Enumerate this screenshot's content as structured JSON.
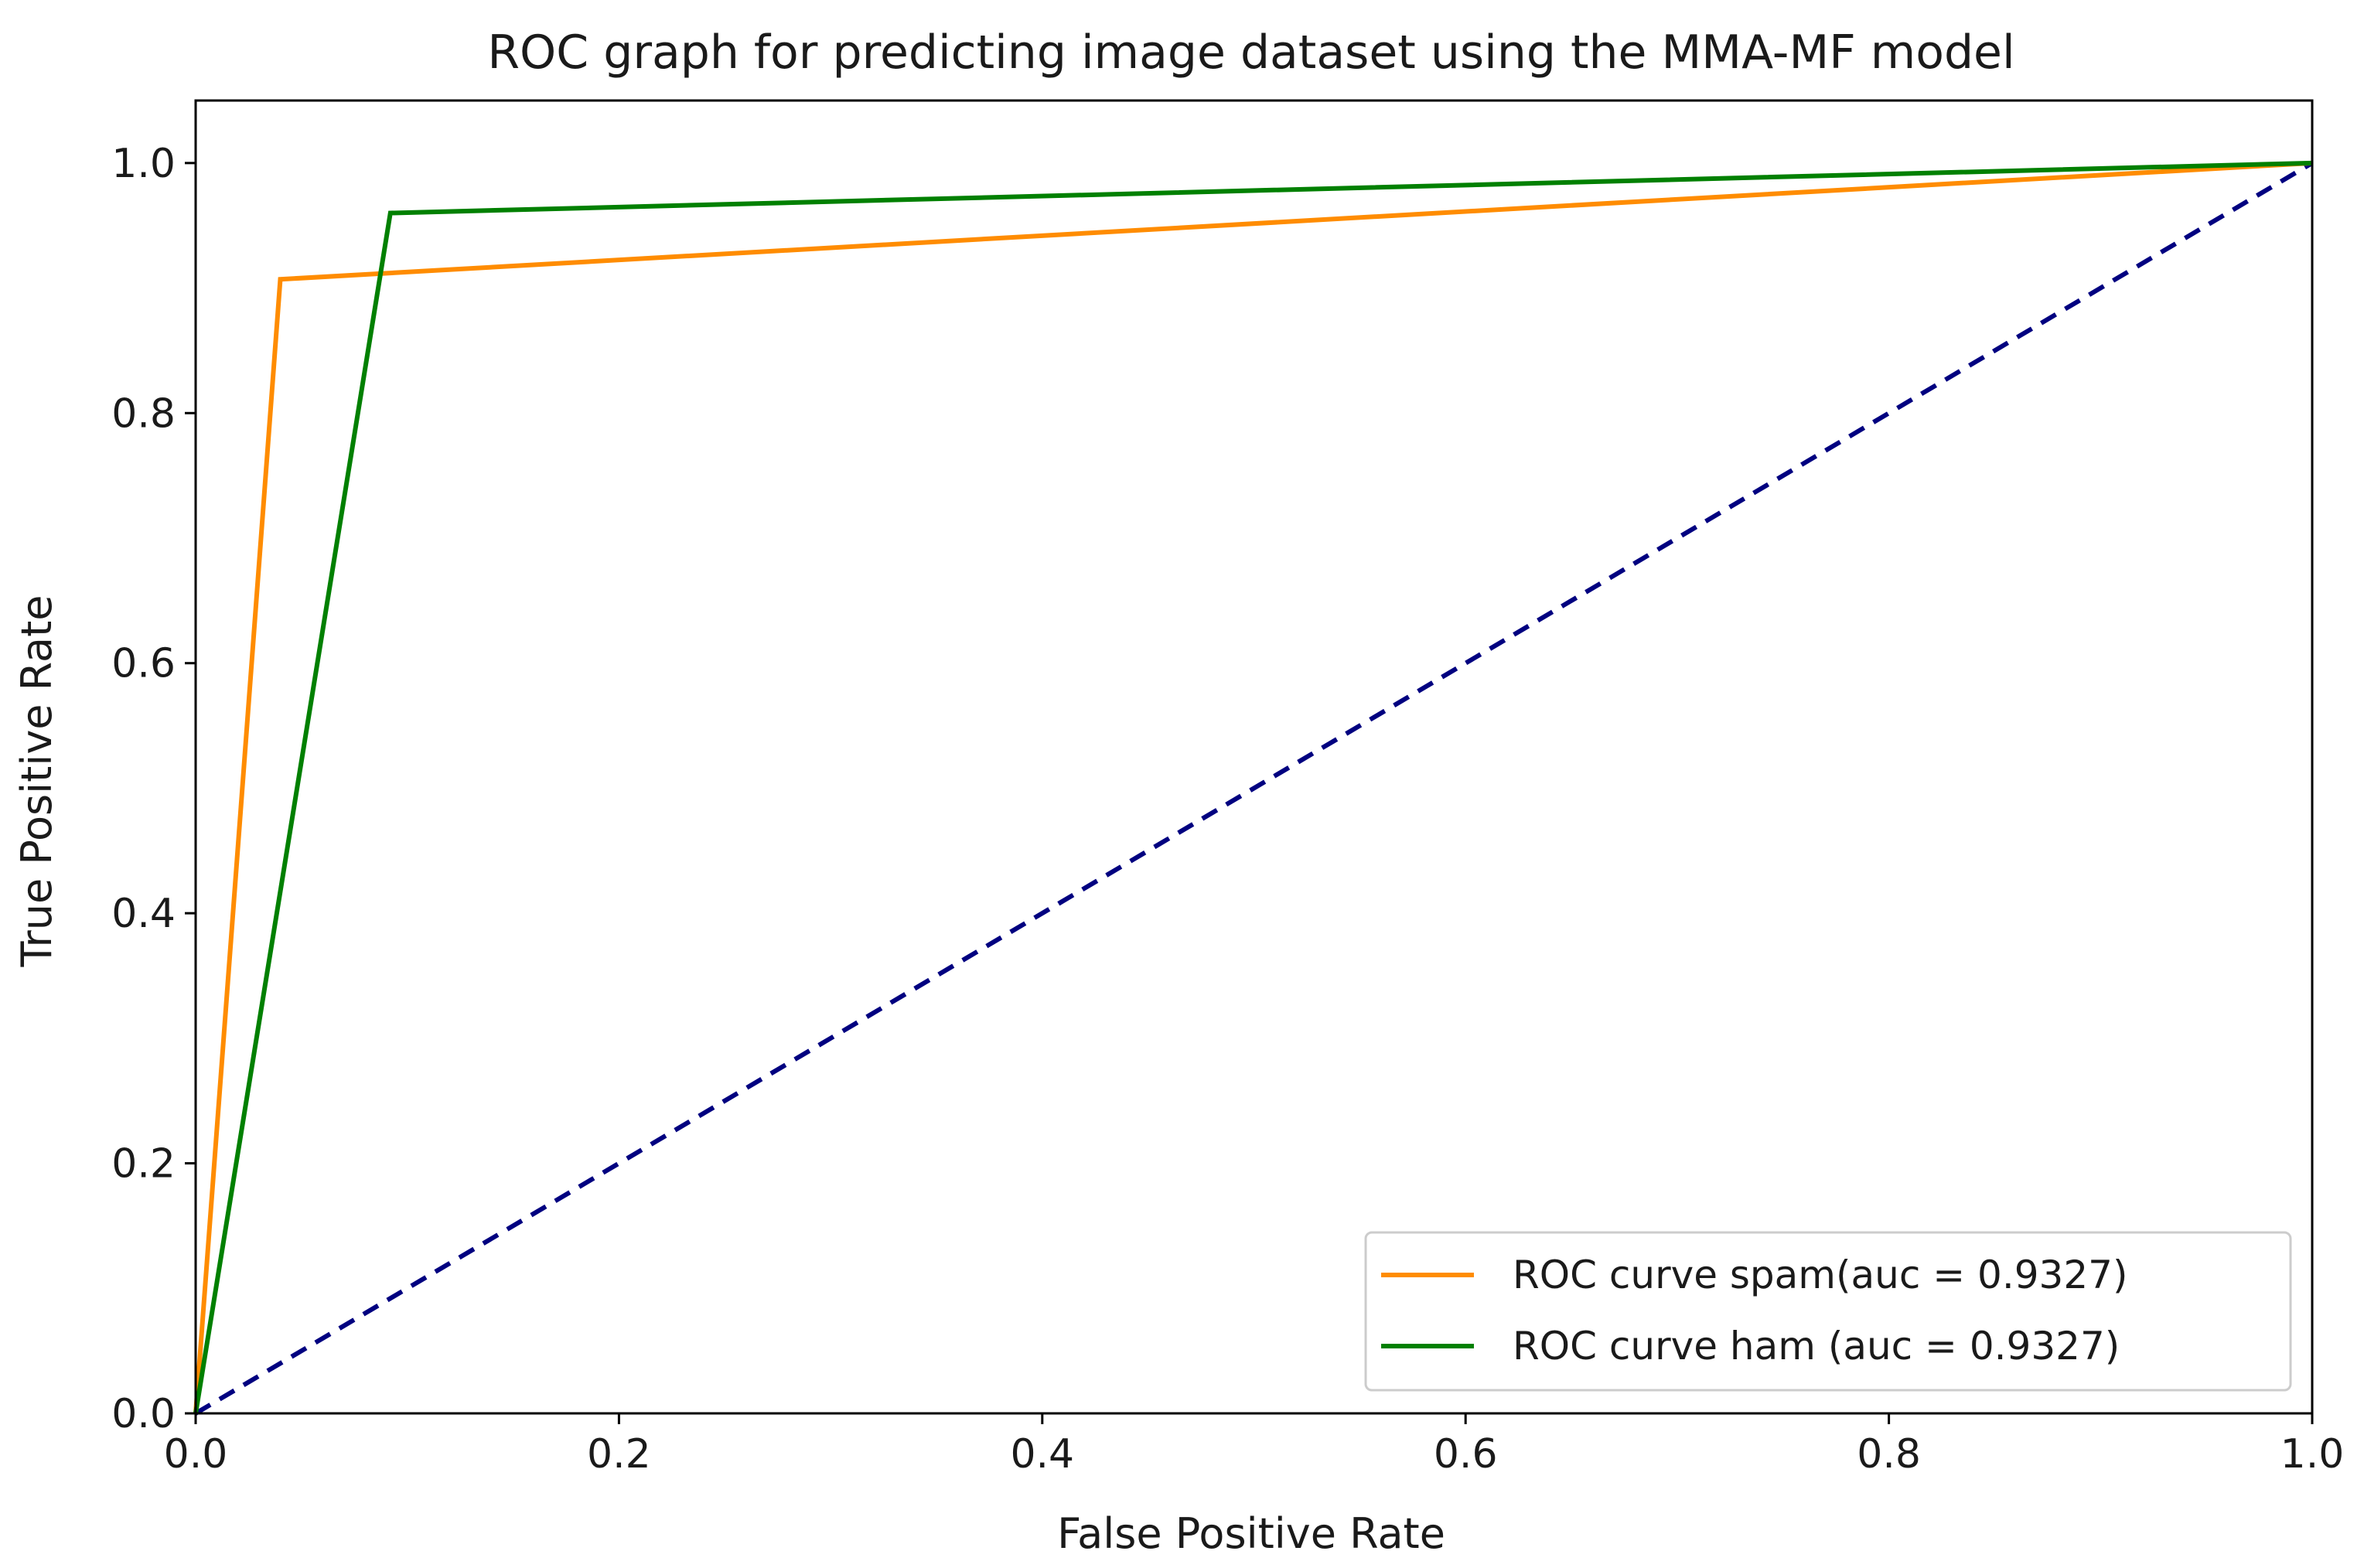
{
  "chart_data": {
    "type": "line",
    "title": "ROC graph for predicting image dataset using the MMA-MF model",
    "xlabel": "False Positive Rate",
    "ylabel": "True Positive Rate",
    "xlim": [
      0.0,
      1.0
    ],
    "ylim": [
      0.0,
      1.05
    ],
    "xticks": [
      0.0,
      0.2,
      0.4,
      0.6,
      0.8,
      1.0
    ],
    "yticks": [
      0.0,
      0.2,
      0.4,
      0.6,
      0.8,
      1.0
    ],
    "xtick_labels": [
      "0.0",
      "0.2",
      "0.4",
      "0.6",
      "0.8",
      "1.0"
    ],
    "ytick_labels": [
      "0.0",
      "0.2",
      "0.4",
      "0.6",
      "0.8",
      "1.0"
    ],
    "grid": false,
    "legend_position": "lower-right",
    "series": [
      {
        "name": "ROC curve spam(auc = 0.9327)",
        "color": "#ff8c00",
        "style": "solid",
        "x": [
          0.0,
          0.04,
          1.0
        ],
        "y": [
          0.0,
          0.907,
          1.0
        ]
      },
      {
        "name": "ROC curve ham (auc = 0.9327)",
        "color": "#008000",
        "style": "solid",
        "x": [
          0.0,
          0.092,
          1.0
        ],
        "y": [
          0.0,
          0.96,
          1.0
        ]
      }
    ],
    "reference_line": {
      "color": "#000080",
      "style": "dashed",
      "x": [
        0.0,
        1.0
      ],
      "y": [
        0.0,
        1.0
      ]
    }
  }
}
